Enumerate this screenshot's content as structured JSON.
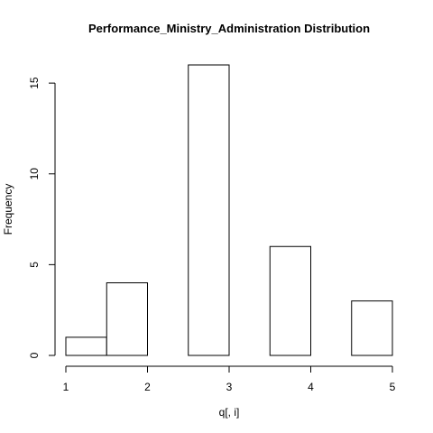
{
  "chart_data": {
    "type": "bar",
    "title": "Performance_Ministry_Administration Distribution",
    "xlabel": "q[, i]",
    "ylabel": "Frequency",
    "bins": [
      {
        "x0": 1.0,
        "x1": 1.5,
        "count": 1
      },
      {
        "x0": 1.5,
        "x1": 2.0,
        "count": 4
      },
      {
        "x0": 2.0,
        "x1": 2.5,
        "count": 0
      },
      {
        "x0": 2.5,
        "x1": 3.0,
        "count": 16
      },
      {
        "x0": 3.0,
        "x1": 3.5,
        "count": 0
      },
      {
        "x0": 3.5,
        "x1": 4.0,
        "count": 6
      },
      {
        "x0": 4.0,
        "x1": 4.5,
        "count": 0
      },
      {
        "x0": 4.5,
        "x1": 5.0,
        "count": 3
      }
    ],
    "xticks": [
      1,
      2,
      3,
      4,
      5
    ],
    "yticks": [
      0,
      5,
      10,
      15
    ],
    "xlim": [
      1,
      5
    ],
    "ylim": [
      0,
      16
    ],
    "grid": false,
    "bar_fill": "#ffffff",
    "bar_stroke": "#000000"
  }
}
